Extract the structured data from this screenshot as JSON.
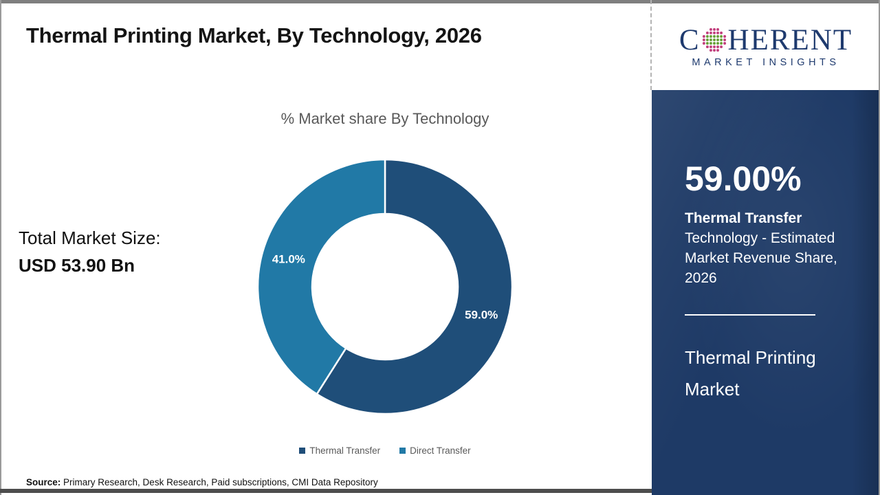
{
  "header": {
    "title": "Thermal Printing Market, By Technology, 2026"
  },
  "logo": {
    "brand_prefix": "C",
    "brand_suffix": "HERENT",
    "tagline": "MARKET INSIGHTS",
    "brand_color": "#1E3A6E"
  },
  "chart_data": {
    "type": "pie",
    "donut": true,
    "title": "% Market share By Technology",
    "categories": [
      "Thermal Transfer",
      "Direct Transfer"
    ],
    "values": [
      59.0,
      41.0
    ],
    "labels": [
      "59.0%",
      "41.0%"
    ],
    "colors": [
      "#1F4E79",
      "#2179A6"
    ],
    "start_angle_deg": 0,
    "direction": "clockwise",
    "legend_position": "bottom"
  },
  "left_panel": {
    "total_label": "Total Market Size:",
    "total_value": "USD 53.90 Bn"
  },
  "legend": [
    {
      "label": "Thermal Transfer",
      "color": "#1F4E79"
    },
    {
      "label": "Direct Transfer",
      "color": "#2179A6"
    }
  ],
  "sidebar": {
    "bg_color": "#1E3A66",
    "stat_value": "59.00%",
    "stat_bold": "Thermal Transfer",
    "stat_desc": "Technology - Estimated Market Revenue Share, 2026",
    "market_name": "Thermal Printing Market"
  },
  "footer": {
    "source_label": "Source:",
    "source_text": "Primary Research, Desk Research, Paid subscriptions, CMI Data Repository"
  }
}
